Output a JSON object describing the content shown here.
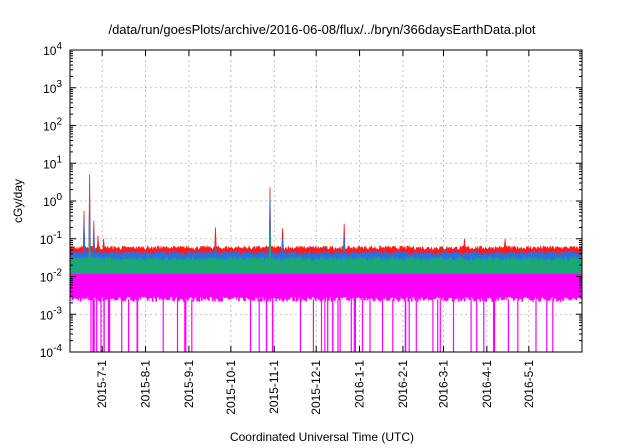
{
  "chart_data": {
    "type": "line",
    "title": "/data/run/goesPlots/archive/2016-06-08/flux/../bryn/366daysEarthData.plot",
    "xlabel": "Coordinated Universal Time (UTC)",
    "ylabel": "cGy/day",
    "yscale": "log",
    "ylim": [
      0.0001,
      10000
    ],
    "xlim": [
      "2015-06-08",
      "2016-06-08"
    ],
    "grid": true,
    "y_ticks": [
      {
        "value": 0.0001,
        "base": "10",
        "exp": "-4"
      },
      {
        "value": 0.001,
        "base": "10",
        "exp": "-3"
      },
      {
        "value": 0.01,
        "base": "10",
        "exp": "-2"
      },
      {
        "value": 0.1,
        "base": "10",
        "exp": "-1"
      },
      {
        "value": 1,
        "base": "10",
        "exp": "0"
      },
      {
        "value": 10,
        "base": "10",
        "exp": "1"
      },
      {
        "value": 100,
        "base": "10",
        "exp": "2"
      },
      {
        "value": 1000,
        "base": "10",
        "exp": "3"
      },
      {
        "value": 10000,
        "base": "10",
        "exp": "4"
      }
    ],
    "x_ticks": [
      "2015-7-1",
      "2015-8-1",
      "2015-9-1",
      "2015-10-1",
      "2015-11-1",
      "2015-12-1",
      "2016-1-1",
      "2016-2-1",
      "2016-3-1",
      "2016-4-1",
      "2016-5-1"
    ],
    "series": [
      {
        "color": "#ff1a1a",
        "baseline": 0.055,
        "spikes": [
          [
            "2015-06-18",
            0.55
          ],
          [
            "2015-06-22",
            5.0
          ],
          [
            "2015-06-25",
            0.3
          ],
          [
            "2015-06-28",
            0.12
          ],
          [
            "2015-07-02",
            0.1
          ],
          [
            "2015-09-20",
            0.2
          ],
          [
            "2015-10-29",
            2.3
          ],
          [
            "2015-11-07",
            0.19
          ],
          [
            "2015-12-21",
            0.25
          ],
          [
            "2016-03-16",
            0.1
          ],
          [
            "2016-04-14",
            0.1
          ]
        ]
      },
      {
        "color": "#2b6fe0",
        "baseline": 0.04,
        "spikes": [
          [
            "2015-06-18",
            0.3
          ],
          [
            "2015-06-22",
            1.6
          ],
          [
            "2015-06-25",
            0.15
          ],
          [
            "2015-09-20",
            0.08
          ],
          [
            "2015-10-29",
            1.4
          ],
          [
            "2015-11-07",
            0.1
          ],
          [
            "2015-12-21",
            0.12
          ]
        ]
      },
      {
        "color": "#1aa876",
        "baseline": 0.028,
        "spikes": [
          [
            "2015-06-22",
            0.25
          ],
          [
            "2015-10-29",
            0.2
          ]
        ]
      },
      {
        "color": "#ff00ff",
        "upper": 0.02,
        "lower": 0.0025,
        "floor": 0.0001
      }
    ]
  }
}
